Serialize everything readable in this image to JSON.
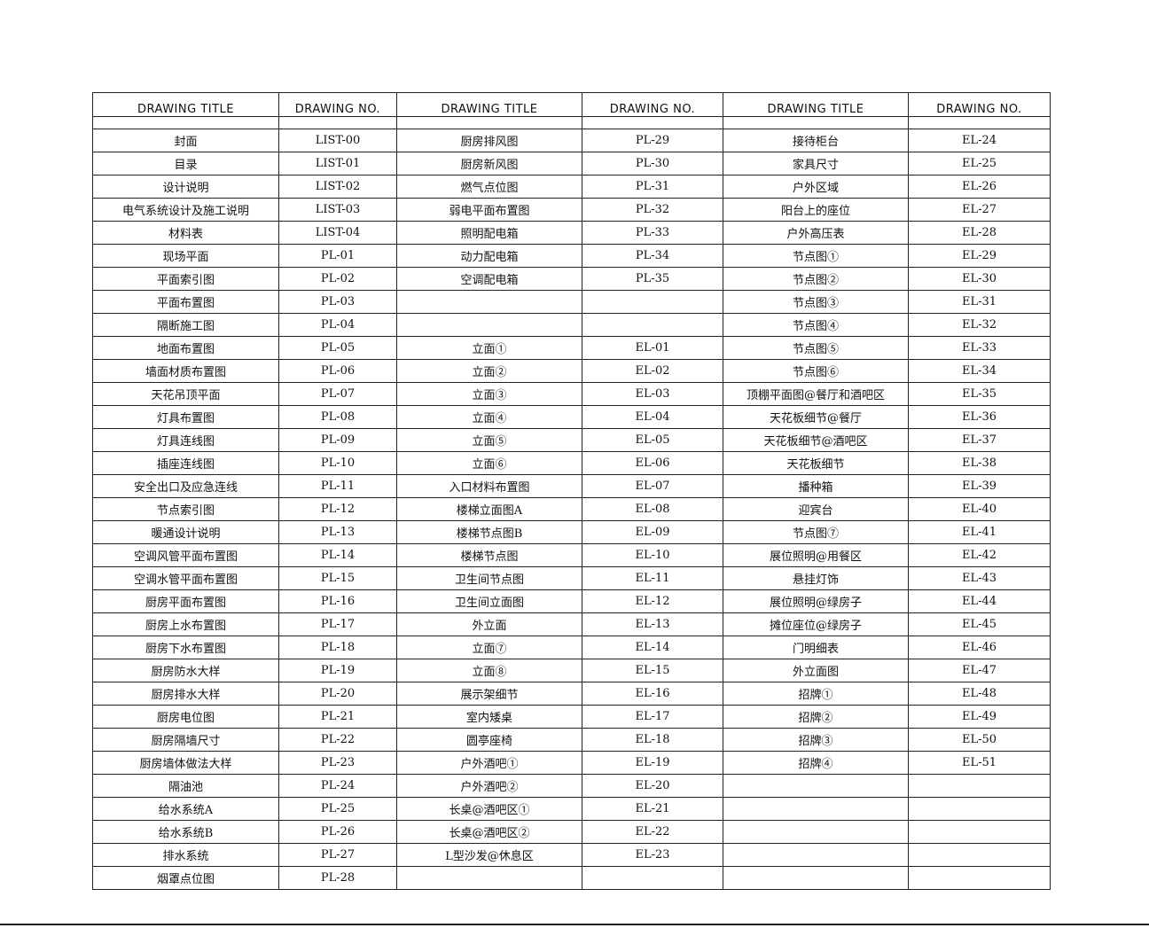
{
  "headers": [
    "DRAWING TITLE",
    "DRAWING NO.",
    "DRAWING TITLE",
    "DRAWING NO.",
    "DRAWING TITLE",
    "DRAWING NO."
  ],
  "rows": [
    [
      "封面",
      "LIST-00",
      "厨房排风图",
      "PL-29",
      "接待柜台",
      "EL-24"
    ],
    [
      "目录",
      "LIST-01",
      "厨房新风图",
      "PL-30",
      "家具尺寸",
      "EL-25"
    ],
    [
      "设计说明",
      "LIST-02",
      "燃气点位图",
      "PL-31",
      "户外区域",
      "EL-26"
    ],
    [
      "电气系统设计及施工说明",
      "LIST-03",
      "弱电平面布置图",
      "PL-32",
      "阳台上的座位",
      "EL-27"
    ],
    [
      "材料表",
      "LIST-04",
      "照明配电箱",
      "PL-33",
      "户外高压表",
      "EL-28"
    ],
    [
      "现场平面",
      "PL-01",
      "动力配电箱",
      "PL-34",
      "节点图①",
      "EL-29"
    ],
    [
      "平面索引图",
      "PL-02",
      "空调配电箱",
      "PL-35",
      "节点图②",
      "EL-30"
    ],
    [
      "平面布置图",
      "PL-03",
      "",
      "",
      "节点图③",
      "EL-31"
    ],
    [
      "隔断施工图",
      "PL-04",
      "",
      "",
      "节点图④",
      "EL-32"
    ],
    [
      "地面布置图",
      "PL-05",
      "立面①",
      "EL-01",
      "节点图⑤",
      "EL-33"
    ],
    [
      "墙面材质布置图",
      "PL-06",
      "立面②",
      "EL-02",
      "节点图⑥",
      "EL-34"
    ],
    [
      "天花吊顶平面",
      "PL-07",
      "立面③",
      "EL-03",
      "顶棚平面图@餐厅和酒吧区",
      "EL-35"
    ],
    [
      "灯具布置图",
      "PL-08",
      "立面④",
      "EL-04",
      "天花板细节@餐厅",
      "EL-36"
    ],
    [
      "灯具连线图",
      "PL-09",
      "立面⑤",
      "EL-05",
      "天花板细节@酒吧区",
      "EL-37"
    ],
    [
      "插座连线图",
      "PL-10",
      "立面⑥",
      "EL-06",
      "天花板细节",
      "EL-38"
    ],
    [
      "安全出口及应急连线",
      "PL-11",
      "入口材料布置图",
      "EL-07",
      "播种箱",
      "EL-39"
    ],
    [
      "节点索引图",
      "PL-12",
      "楼梯立面图A",
      "EL-08",
      "迎宾台",
      "EL-40"
    ],
    [
      "暖通设计说明",
      "PL-13",
      "楼梯节点图B",
      "EL-09",
      "节点图⑦",
      "EL-41"
    ],
    [
      "空调风管平面布置图",
      "PL-14",
      "楼梯节点图",
      "EL-10",
      "展位照明@用餐区",
      "EL-42"
    ],
    [
      "空调水管平面布置图",
      "PL-15",
      "卫生间节点图",
      "EL-11",
      "悬挂灯饰",
      "EL-43"
    ],
    [
      "厨房平面布置图",
      "PL-16",
      "卫生间立面图",
      "EL-12",
      "展位照明@绿房子",
      "EL-44"
    ],
    [
      "厨房上水布置图",
      "PL-17",
      "外立面",
      "EL-13",
      "摊位座位@绿房子",
      "EL-45"
    ],
    [
      "厨房下水布置图",
      "PL-18",
      "立面⑦",
      "EL-14",
      "门明细表",
      "EL-46"
    ],
    [
      "厨房防水大样",
      "PL-19",
      "立面⑧",
      "EL-15",
      "外立面图",
      "EL-47"
    ],
    [
      "厨房排水大样",
      "PL-20",
      "展示架细节",
      "EL-16",
      "招牌①",
      "EL-48"
    ],
    [
      "厨房电位图",
      "PL-21",
      "室内矮桌",
      "EL-17",
      "招牌②",
      "EL-49"
    ],
    [
      "厨房隔墙尺寸",
      "PL-22",
      "圆亭座椅",
      "EL-18",
      "招牌③",
      "EL-50"
    ],
    [
      "厨房墙体做法大样",
      "PL-23",
      "户外酒吧①",
      "EL-19",
      "招牌④",
      "EL-51"
    ],
    [
      "隔油池",
      "PL-24",
      "户外酒吧②",
      "EL-20",
      "",
      ""
    ],
    [
      "给水系统A",
      "PL-25",
      "长桌@酒吧区①",
      "EL-21",
      "",
      ""
    ],
    [
      "给水系统B",
      "PL-26",
      "长桌@酒吧区②",
      "EL-22",
      "",
      ""
    ],
    [
      "排水系统",
      "PL-27",
      "L型沙发@休息区",
      "EL-23",
      "",
      ""
    ],
    [
      "烟罩点位图",
      "PL-28",
      "",
      "",
      "",
      ""
    ]
  ]
}
